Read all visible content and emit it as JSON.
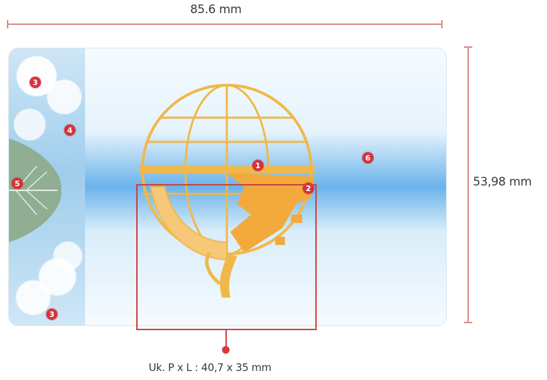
{
  "dimensions": {
    "width_label": "85.6 mm",
    "height_label": "53,98 mm",
    "logo_size_label": "Uk. P x L : 40,7 x 35 mm"
  },
  "markers": [
    {
      "id": "marker-1",
      "label": "1"
    },
    {
      "id": "marker-2",
      "label": "2"
    },
    {
      "id": "marker-3-top",
      "label": "3"
    },
    {
      "id": "marker-3-bottom",
      "label": "3"
    },
    {
      "id": "marker-4",
      "label": "4"
    },
    {
      "id": "marker-5",
      "label": "5"
    },
    {
      "id": "marker-6",
      "label": "6"
    }
  ],
  "colors": {
    "dimension_line": "#d98a8a",
    "marker": "#d6323a",
    "logo_gold": "#f0b84a",
    "card_blue": "#6ab3ea"
  },
  "icons": {
    "logo": "globe-gear-logo",
    "leaf": "leaf-watermark"
  }
}
